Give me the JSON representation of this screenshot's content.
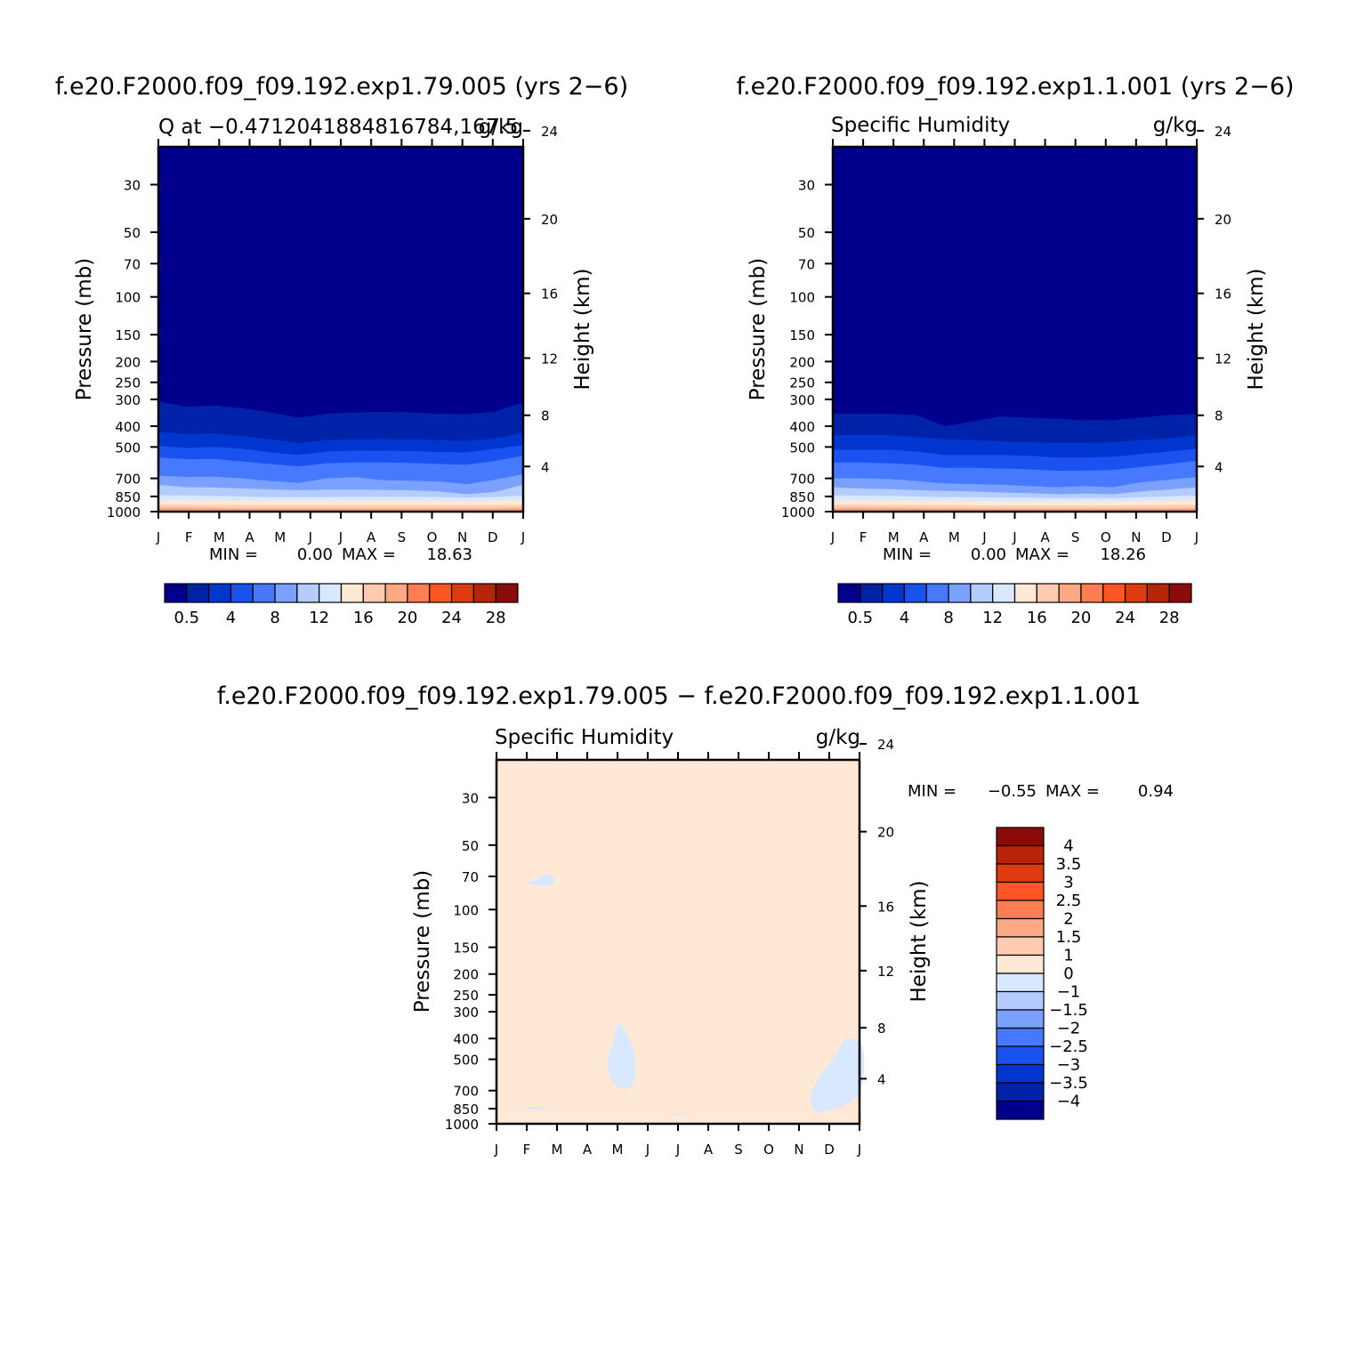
{
  "chart_data": [
    {
      "type": "heatmap",
      "title": "f.e20.F2000.f09_f09.192.exp1.79.005 (yrs 2-6)",
      "subtitle_left": "Q at -0.4712041884816784,167.5",
      "subtitle_right": "g/kg",
      "ylabel": "Pressure (mb)",
      "y2label": "Height (km)",
      "x_ticks": [
        "J",
        "F",
        "M",
        "A",
        "M",
        "J",
        "J",
        "A",
        "S",
        "O",
        "N",
        "D",
        "J"
      ],
      "y_ticks": [
        "30",
        "50",
        "70",
        "100",
        "150",
        "200",
        "250",
        "300",
        "400",
        "500",
        "700",
        "850",
        "1000"
      ],
      "y_tick_values": [
        30,
        50,
        70,
        100,
        150,
        200,
        250,
        300,
        400,
        500,
        700,
        850,
        1000
      ],
      "y2_ticks": [
        "24",
        "20",
        "16",
        "12",
        "8",
        "4"
      ],
      "y2_tick_values": [
        24,
        20,
        16,
        12,
        8,
        4
      ],
      "ylim": [
        20,
        1000
      ],
      "log_y": true,
      "stats": {
        "min_label": "MIN =",
        "min": "0.00",
        "max_label": "MAX =",
        "max": "18.63"
      },
      "contour_levels": [
        0.5,
        1,
        2,
        4,
        6,
        8,
        10,
        12,
        14,
        16,
        18,
        20,
        22,
        24,
        26,
        28
      ],
      "colorbar_labels": [
        "0.5",
        "4",
        "8",
        "12",
        "16",
        "20",
        "24",
        "28"
      ],
      "level_boundaries": [
        {
          "level": 0.5,
          "pressure": [
            307,
            325,
            320,
            330,
            345,
            365,
            350,
            345,
            343,
            345,
            350,
            352,
            342,
            310
          ]
        },
        {
          "level": 1,
          "pressure": [
            425,
            435,
            432,
            445,
            460,
            480,
            465,
            460,
            458,
            460,
            465,
            470,
            455,
            430
          ]
        },
        {
          "level": 2,
          "pressure": [
            495,
            505,
            500,
            510,
            530,
            545,
            525,
            520,
            520,
            522,
            528,
            530,
            510,
            490
          ]
        },
        {
          "level": 4,
          "pressure": [
            560,
            570,
            568,
            585,
            600,
            615,
            595,
            590,
            590,
            593,
            600,
            605,
            580,
            550
          ]
        },
        {
          "level": 6,
          "pressure": [
            680,
            690,
            688,
            700,
            720,
            735,
            700,
            690,
            715,
            718,
            725,
            745,
            710,
            670
          ]
        },
        {
          "level": 8,
          "pressure": [
            750,
            770,
            772,
            780,
            788,
            795,
            790,
            790,
            792,
            795,
            805,
            830,
            810,
            750
          ]
        },
        {
          "level": 10,
          "pressure": [
            840,
            840,
            845,
            850,
            855,
            855,
            855,
            852,
            852,
            853,
            855,
            860,
            855,
            840
          ]
        },
        {
          "level": 12,
          "pressure": [
            885,
            885,
            888,
            890,
            892,
            892,
            892,
            890,
            890,
            890,
            892,
            895,
            890,
            885
          ]
        },
        {
          "level": 14,
          "pressure": [
            930,
            930,
            932,
            933,
            935,
            935,
            935,
            933,
            933,
            933,
            935,
            935,
            933,
            930
          ]
        },
        {
          "level": 16,
          "pressure": [
            960,
            960,
            962,
            965,
            966,
            966,
            966,
            965,
            965,
            965,
            966,
            966,
            964,
            960
          ]
        }
      ]
    },
    {
      "type": "heatmap",
      "title": "f.e20.F2000.f09_f09.192.exp1.1.001 (yrs 2-6)",
      "subtitle_left": "Specific Humidity",
      "subtitle_right": "g/kg",
      "ylabel": "Pressure (mb)",
      "y2label": "Height (km)",
      "x_ticks": [
        "J",
        "F",
        "M",
        "A",
        "M",
        "J",
        "J",
        "A",
        "S",
        "O",
        "N",
        "D",
        "J"
      ],
      "y_ticks": [
        "30",
        "50",
        "70",
        "100",
        "150",
        "200",
        "250",
        "300",
        "400",
        "500",
        "700",
        "850",
        "1000"
      ],
      "y_tick_values": [
        30,
        50,
        70,
        100,
        150,
        200,
        250,
        300,
        400,
        500,
        700,
        850,
        1000
      ],
      "y2_ticks": [
        "24",
        "20",
        "16",
        "12",
        "8",
        "4"
      ],
      "y2_tick_values": [
        24,
        20,
        16,
        12,
        8,
        4
      ],
      "ylim": [
        20,
        1000
      ],
      "log_y": true,
      "stats": {
        "min_label": "MIN =",
        "min": "0.00",
        "max_label": "MAX =",
        "max": "18.26"
      },
      "contour_levels": [
        0.5,
        1,
        2,
        4,
        6,
        8,
        10,
        12,
        14,
        16,
        18,
        20,
        22,
        24,
        26,
        28
      ],
      "colorbar_labels": [
        "0.5",
        "4",
        "8",
        "12",
        "16",
        "20",
        "24",
        "28"
      ],
      "level_boundaries": [
        {
          "level": 0.5,
          "pressure": [
            350,
            350,
            350,
            355,
            400,
            380,
            360,
            365,
            370,
            375,
            375,
            365,
            355,
            350
          ]
        },
        {
          "level": 1,
          "pressure": [
            440,
            440,
            440,
            450,
            460,
            465,
            470,
            475,
            478,
            478,
            475,
            465,
            455,
            440
          ]
        },
        {
          "level": 2,
          "pressure": [
            515,
            515,
            515,
            525,
            545,
            545,
            545,
            550,
            560,
            560,
            555,
            540,
            525,
            510
          ]
        },
        {
          "level": 4,
          "pressure": [
            590,
            590,
            595,
            605,
            625,
            625,
            630,
            635,
            645,
            645,
            640,
            620,
            600,
            580
          ]
        },
        {
          "level": 6,
          "pressure": [
            700,
            700,
            705,
            720,
            740,
            745,
            750,
            760,
            770,
            760,
            770,
            730,
            710,
            690
          ]
        },
        {
          "level": 8,
          "pressure": [
            770,
            780,
            785,
            795,
            800,
            805,
            815,
            820,
            830,
            825,
            830,
            805,
            790,
            770
          ]
        },
        {
          "level": 10,
          "pressure": [
            840,
            842,
            845,
            850,
            855,
            857,
            860,
            862,
            865,
            865,
            865,
            858,
            850,
            840
          ]
        },
        {
          "level": 12,
          "pressure": [
            885,
            885,
            888,
            890,
            892,
            893,
            895,
            896,
            897,
            897,
            896,
            893,
            890,
            885
          ]
        },
        {
          "level": 14,
          "pressure": [
            930,
            930,
            932,
            933,
            935,
            936,
            937,
            937,
            938,
            938,
            937,
            935,
            933,
            930
          ]
        },
        {
          "level": 16,
          "pressure": [
            960,
            960,
            962,
            965,
            966,
            967,
            968,
            968,
            968,
            968,
            967,
            966,
            964,
            960
          ]
        }
      ]
    },
    {
      "type": "heatmap",
      "title": "f.e20.F2000.f09_f09.192.exp1.79.005 - f.e20.F2000.f09_f09.192.exp1.1.001",
      "subtitle_left": "Specific Humidity",
      "subtitle_right": "g/kg",
      "ylabel": "Pressure (mb)",
      "y2label": "Height (km)",
      "x_ticks": [
        "J",
        "F",
        "M",
        "A",
        "M",
        "J",
        "J",
        "A",
        "S",
        "O",
        "N",
        "D",
        "J"
      ],
      "y_ticks": [
        "30",
        "50",
        "70",
        "100",
        "150",
        "200",
        "250",
        "300",
        "400",
        "500",
        "700",
        "850",
        "1000"
      ],
      "y_tick_values": [
        30,
        50,
        70,
        100,
        150,
        200,
        250,
        300,
        400,
        500,
        700,
        850,
        1000
      ],
      "y2_ticks": [
        "24",
        "20",
        "16",
        "12",
        "8",
        "4"
      ],
      "y2_tick_values": [
        24,
        20,
        16,
        12,
        8,
        4
      ],
      "ylim": [
        20,
        1000
      ],
      "log_y": true,
      "stats": {
        "min_label": "MIN =",
        "min": "-0.55",
        "max_label": "MAX =",
        "max": "0.94"
      },
      "background_range": "0 to 1",
      "negative_regions_range": "-1 to 0",
      "negative_regions": [
        {
          "name": "feb-upper",
          "points": [
            [
              1.1,
              74
            ],
            [
              1.5,
              70
            ],
            [
              1.7,
              68
            ],
            [
              1.9,
              72
            ],
            [
              1.8,
              77
            ],
            [
              1.4,
              77
            ],
            [
              1.1,
              76
            ]
          ]
        },
        {
          "name": "may-mid",
          "points": [
            [
              3.85,
              420
            ],
            [
              4.0,
              340
            ],
            [
              4.2,
              360
            ],
            [
              4.5,
              440
            ],
            [
              4.6,
              560
            ],
            [
              4.5,
              650
            ],
            [
              4.2,
              690
            ],
            [
              3.9,
              650
            ],
            [
              3.7,
              560
            ],
            [
              3.7,
              480
            ]
          ]
        },
        {
          "name": "dec-low",
          "points": [
            [
              10.4,
              720
            ],
            [
              10.7,
              600
            ],
            [
              11.2,
              480
            ],
            [
              11.6,
              400
            ],
            [
              12.1,
              440
            ],
            [
              12.1,
              640
            ],
            [
              11.7,
              790
            ],
            [
              11.0,
              860
            ],
            [
              10.6,
              880
            ],
            [
              10.4,
              820
            ]
          ]
        },
        {
          "name": "feb-low",
          "points": [
            [
              0.9,
              835
            ],
            [
              1.4,
              840
            ],
            [
              1.9,
              845
            ],
            [
              1.5,
              850
            ],
            [
              0.95,
              848
            ]
          ]
        },
        {
          "name": "jul-low",
          "points": [
            [
              5.8,
              905
            ],
            [
              6.0,
              895
            ],
            [
              6.3,
              905
            ],
            [
              6.0,
              912
            ]
          ]
        }
      ],
      "colorbar_labels": [
        "4",
        "3.5",
        "3",
        "2.5",
        "2",
        "1.5",
        "1",
        "0",
        "-1",
        "-1.5",
        "-2",
        "-2.5",
        "-3",
        "-3.5",
        "-4"
      ]
    }
  ],
  "colors": {
    "fill_colors": [
      "#00008c",
      "#0022a8",
      "#0036d0",
      "#1a52f0",
      "#4679ff",
      "#7ba1ff",
      "#b4ccff",
      "#d8e8ff",
      "#ffe8d6",
      "#ffcbb0",
      "#ffa884",
      "#ff7d52",
      "#ff5522",
      "#e03a10",
      "#b82408",
      "#8b0a0a"
    ],
    "diff_colors": [
      "#8b0a0a",
      "#b82408",
      "#e03a10",
      "#ff5522",
      "#ff7d52",
      "#ffa884",
      "#ffcbb0",
      "#ffe8d6",
      "#d8e8ff",
      "#b4ccff",
      "#7ba1ff",
      "#4679ff",
      "#1a52f0",
      "#0036d0",
      "#0022a8",
      "#00008c"
    ],
    "diff_background": "#ffe8d6",
    "diff_negative": "#d8e8ff"
  }
}
